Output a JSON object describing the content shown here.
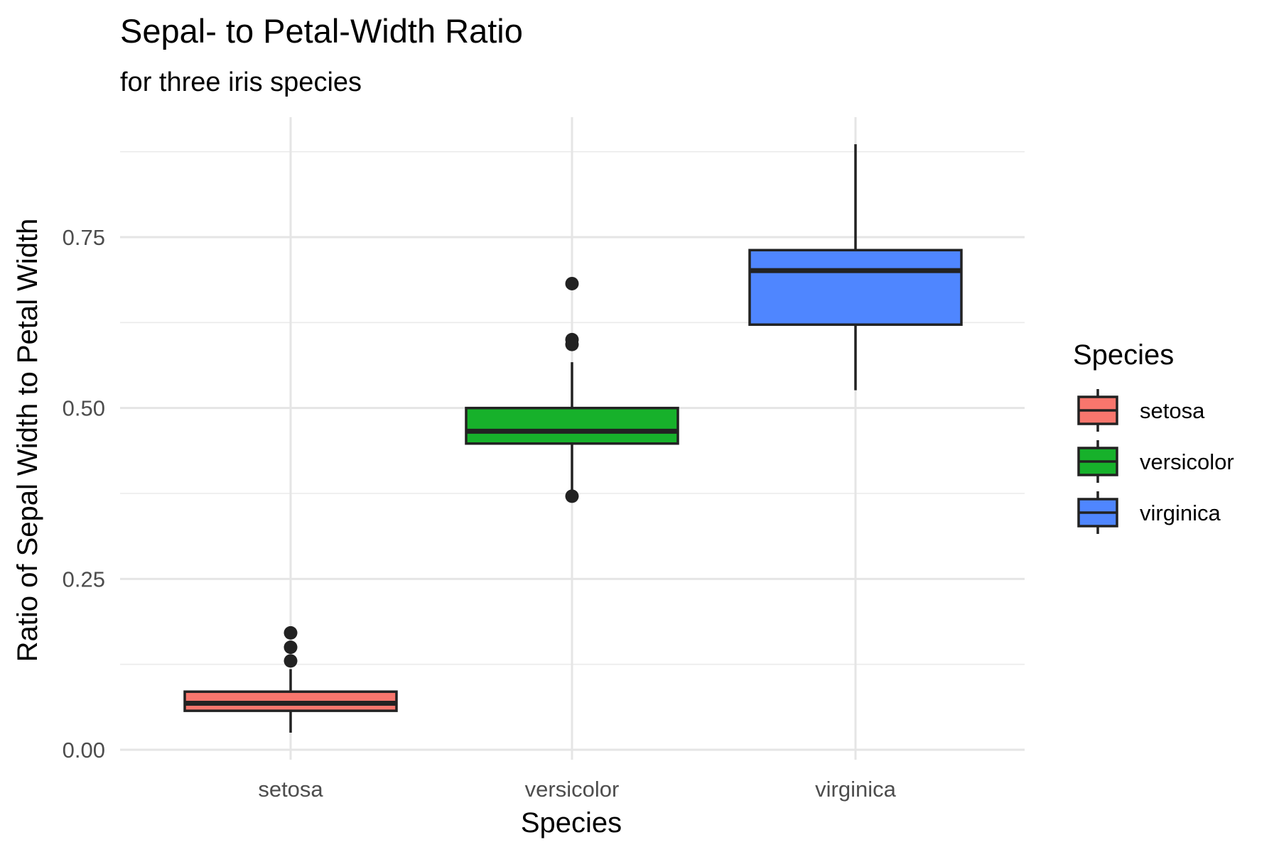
{
  "chart_data": {
    "type": "box",
    "title": "Sepal- to Petal-Width Ratio",
    "subtitle": "for three iris species",
    "xlabel": "Species",
    "ylabel": "Ratio of Sepal Width to Petal Width",
    "ylim": [
      -0.02,
      0.9
    ],
    "y_ticks": [
      0.0,
      0.25,
      0.5,
      0.75
    ],
    "y_tick_labels": [
      "0.00",
      "0.25",
      "0.50",
      "0.75"
    ],
    "y_minor_ticks": [
      0.125,
      0.375,
      0.625,
      0.875
    ],
    "categories": [
      "setosa",
      "versicolor",
      "virginica"
    ],
    "grid": true,
    "legend": {
      "title": "Species",
      "position": "right",
      "entries": [
        "setosa",
        "versicolor",
        "virginica"
      ]
    },
    "series": [
      {
        "name": "setosa",
        "color": "#F8766D",
        "min": 0.025,
        "q1": 0.057,
        "median": 0.068,
        "q3": 0.085,
        "max": 0.118,
        "outliers": [
          0.13,
          0.15,
          0.171
        ]
      },
      {
        "name": "versicolor",
        "color": "#17B12B",
        "min": 0.372,
        "q1": 0.448,
        "median": 0.466,
        "q3": 0.5,
        "max": 0.567,
        "outliers": [
          0.371,
          0.593,
          0.6,
          0.682
        ]
      },
      {
        "name": "virginica",
        "color": "#4F86FF",
        "min": 0.526,
        "q1": 0.622,
        "median": 0.701,
        "q3": 0.731,
        "max": 0.886,
        "outliers": []
      }
    ]
  }
}
